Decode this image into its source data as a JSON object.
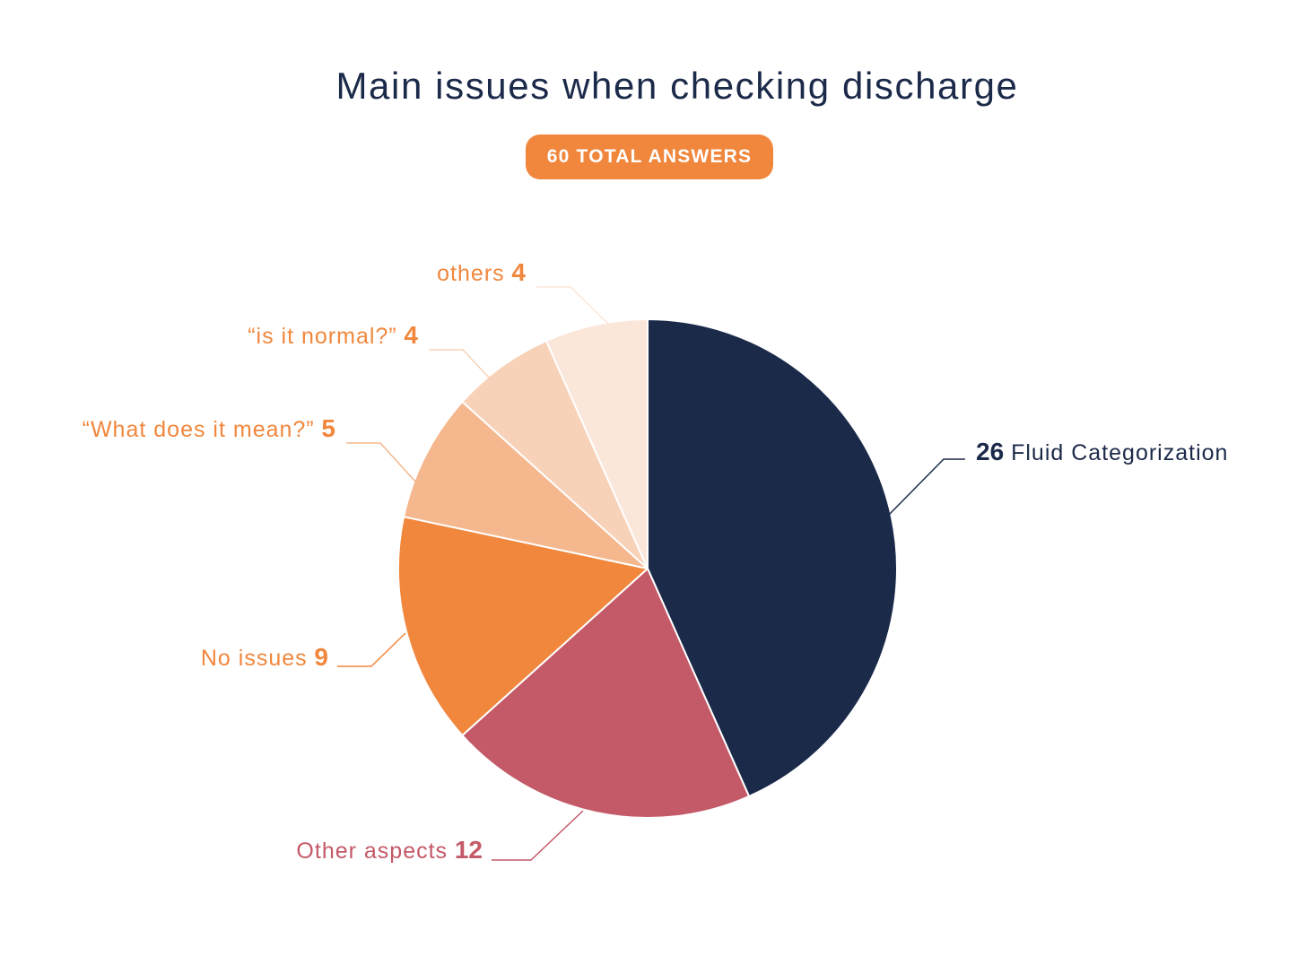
{
  "chart_data": {
    "type": "pie",
    "title": "Main issues when checking discharge",
    "total_label": "60 TOTAL ANSWERS",
    "total": 60,
    "slices": [
      {
        "label": "Fluid Categorization",
        "value": 26,
        "display_value": "26",
        "color": "#1c2a4a",
        "label_color": "#1c2a4a"
      },
      {
        "label": "Other aspects",
        "value": 12,
        "display_value": "12",
        "color": "#c45968",
        "label_color": "#c45968"
      },
      {
        "label": "No issues",
        "value": 9,
        "display_value": "9",
        "color": "#f0873d",
        "label_color": "#f0873d"
      },
      {
        "label": "“What does it mean?”",
        "value": 5,
        "display_value": "5",
        "color": "#f5b88e",
        "label_color": "#f0873d"
      },
      {
        "label": "“is it normal?”",
        "value": 4,
        "display_value": "4",
        "color": "#f8d2b8",
        "label_color": "#f0873d"
      },
      {
        "label": "others",
        "value": 4,
        "display_value": "4",
        "color": "#fbe6da",
        "label_color": "#f0873d"
      }
    ]
  },
  "colors": {
    "badge_background": "#f0873d",
    "title": "#1c2a4a"
  }
}
